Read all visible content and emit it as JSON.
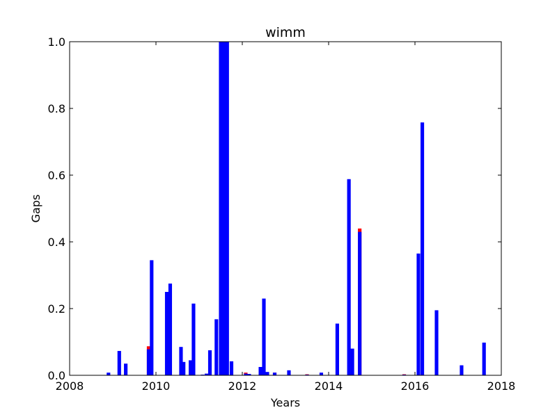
{
  "chart_data": {
    "type": "bar",
    "title": "wimm",
    "xlabel": "Years",
    "ylabel": "Gaps",
    "xlim": [
      2008,
      2018
    ],
    "ylim": [
      0,
      1.0
    ],
    "xticks": [
      2008,
      2010,
      2012,
      2014,
      2016,
      2018
    ],
    "xtick_labels": [
      "2008",
      "2010",
      "2012",
      "2014",
      "2016",
      "2018"
    ],
    "yticks": [
      0,
      0.2,
      0.4,
      0.6,
      0.8,
      1.0
    ],
    "ytick_labels": [
      "0.0",
      "0.2",
      "0.4",
      "0.6",
      "0.8",
      "1.0"
    ],
    "grid": false,
    "legend": false,
    "bar_width_years": 0.083,
    "series": [
      {
        "color": "#ff0000",
        "stack": "top",
        "x": [
          2009.83,
          2012.08,
          2012.75,
          2013.5,
          2014.72,
          2015.75
        ],
        "values": [
          0.087,
          0.008,
          0.008,
          0.003,
          0.44,
          0.003
        ]
      },
      {
        "color": "#0000ff",
        "stack": "front",
        "x": [
          2008.9,
          2009.15,
          2009.3,
          2009.83,
          2009.9,
          2010.25,
          2010.33,
          2010.58,
          2010.64,
          2010.8,
          2010.87,
          2011.08,
          2011.17,
          2011.25,
          2011.4,
          2011.5,
          2011.58,
          2011.65,
          2011.75,
          2012.08,
          2012.16,
          2012.42,
          2012.5,
          2012.58,
          2012.75,
          2013.08,
          2013.5,
          2013.83,
          2014.2,
          2014.47,
          2014.55,
          2014.72,
          2015.75,
          2016.08,
          2016.17,
          2016.5,
          2017.08,
          2017.6
        ],
        "values": [
          0.008,
          0.073,
          0.035,
          0.078,
          0.345,
          0.25,
          0.275,
          0.085,
          0.04,
          0.045,
          0.215,
          0.002,
          0.005,
          0.075,
          0.168,
          1.0,
          1.0,
          1.0,
          0.042,
          0.005,
          0.004,
          0.025,
          0.23,
          0.01,
          0.008,
          0.015,
          0.002,
          0.008,
          0.155,
          0.588,
          0.08,
          0.43,
          0.002,
          0.365,
          0.758,
          0.195,
          0.03,
          0.098
        ]
      }
    ]
  }
}
